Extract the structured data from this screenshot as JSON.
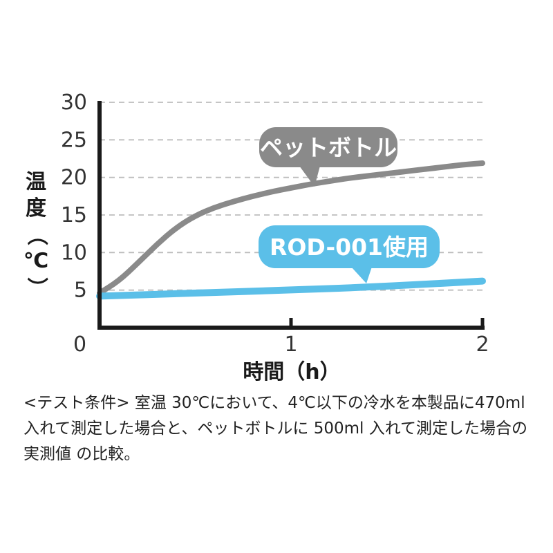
{
  "chart_data": {
    "type": "line",
    "ylabel_chars": [
      "温",
      "度",
      "（",
      "℃",
      "）"
    ],
    "xlabel": "時間（h）",
    "xlim": [
      0,
      2
    ],
    "ylim": [
      0,
      30
    ],
    "x_ticks": [
      {
        "value": 0,
        "label": "0"
      },
      {
        "value": 1,
        "label": "1"
      },
      {
        "value": 2,
        "label": "2"
      }
    ],
    "y_ticks": [
      {
        "value": 5,
        "label": "5"
      },
      {
        "value": 10,
        "label": "10"
      },
      {
        "value": 15,
        "label": "15"
      },
      {
        "value": 20,
        "label": "20"
      },
      {
        "value": 25,
        "label": "25"
      },
      {
        "value": 30,
        "label": "30"
      }
    ],
    "grid": "horizontal-dashed",
    "series": [
      {
        "name": "ペットボトル",
        "color": "#8a8a8a",
        "x": [
          0,
          0.1,
          0.2,
          0.3,
          0.4,
          0.5,
          0.6,
          0.7,
          0.8,
          0.9,
          1.0,
          1.1,
          1.2,
          1.3,
          1.4,
          1.5,
          1.6,
          1.7,
          1.8,
          1.9,
          2.0
        ],
        "y": [
          4.6,
          6.2,
          8.6,
          11.1,
          13.3,
          14.9,
          16.0,
          16.8,
          17.5,
          18.1,
          18.6,
          19.1,
          19.5,
          19.9,
          20.2,
          20.5,
          20.8,
          21.1,
          21.4,
          21.7,
          21.9
        ]
      },
      {
        "name": "ROD-001使用",
        "color": "#5bbfe8",
        "x": [
          0,
          0.5,
          1.0,
          1.5,
          2.0
        ],
        "y": [
          4.2,
          4.6,
          5.0,
          5.5,
          6.2
        ]
      }
    ]
  },
  "note": "<テスト条件> 室温 30℃において、4℃以下の冷水を本製品に470ml 入れて測定した場合と、ペットボトルに 500ml 入れて測定した場合の実測値 の比較。"
}
